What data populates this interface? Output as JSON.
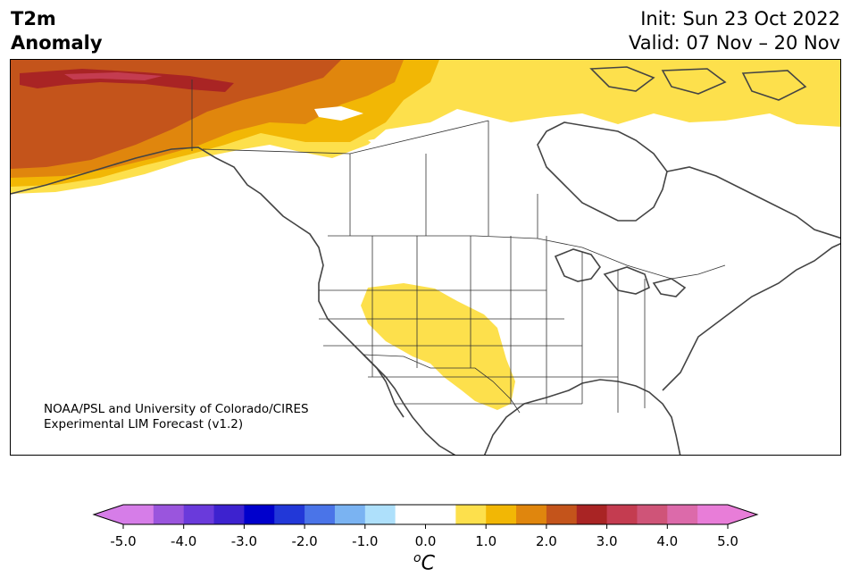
{
  "header": {
    "title_line1": "T2m",
    "title_line2": "Anomaly",
    "init_text": "Init: Sun 23 Oct 2022",
    "valid_text": "Valid: 07 Nov – 20 Nov"
  },
  "credit": {
    "line1": "NOAA/PSL and University of Colorado/CIRES",
    "line2": "Experimental LIM Forecast (v1.2)"
  },
  "colorbar": {
    "colors": [
      "#d67de8",
      "#9a55dd",
      "#6a3adb",
      "#3d22cf",
      "#0000cc",
      "#2238d8",
      "#4a74e8",
      "#7ab3f2",
      "#aee0fb",
      "#ffffff",
      "#ffffff",
      "#fde04c",
      "#f2b705",
      "#e0860d",
      "#c4541b",
      "#a92424",
      "#c43c50",
      "#cf5478",
      "#dc6aaa",
      "#e87dd8"
    ],
    "under_color": "#d67de8",
    "over_color": "#e87dd8",
    "tick_labels": [
      "-5.0",
      "-4.0",
      "-3.0",
      "-2.0",
      "-1.0",
      "0.0",
      "1.0",
      "2.0",
      "3.0",
      "4.0",
      "5.0"
    ],
    "unit_prefix": "o",
    "unit_main": "C"
  },
  "map": {
    "land_outline_color": "#444444",
    "shading_colors": {
      "warm_0_5": "#fde04c",
      "warm_1_0": "#f2b705",
      "warm_1_5": "#e0860d",
      "warm_2_0": "#c4541b",
      "warm_2_5": "#a92424"
    }
  }
}
